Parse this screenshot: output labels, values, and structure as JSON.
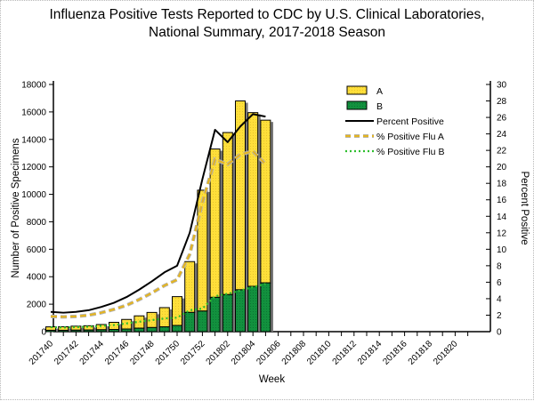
{
  "title": {
    "line1": "Influenza Positive Tests Reported to CDC by U.S. Clinical Laboratories,",
    "line2": "National Summary, 2017-2018 Season"
  },
  "chart_data": {
    "type": "bar",
    "subtype": "stacked-bars-with-percent-lines",
    "categories": [
      "201740",
      "201741",
      "201742",
      "201743",
      "201744",
      "201745",
      "201746",
      "201747",
      "201748",
      "201749",
      "201750",
      "201751",
      "201752",
      "201801",
      "201802",
      "201803",
      "201804",
      "201805"
    ],
    "series": [
      {
        "name": "A",
        "type": "bar",
        "axis": "left",
        "color": "#ffdf3a",
        "values": [
          250,
          260,
          290,
          310,
          380,
          520,
          700,
          900,
          1100,
          1400,
          2100,
          3700,
          8800,
          10800,
          11800,
          13750,
          12650,
          11850
        ]
      },
      {
        "name": "B",
        "type": "bar",
        "axis": "left",
        "color": "#12913e",
        "values": [
          100,
          100,
          110,
          120,
          140,
          160,
          190,
          250,
          300,
          350,
          450,
          1400,
          1500,
          2500,
          2700,
          3050,
          3300,
          3550
        ]
      },
      {
        "name": "Percent Positive",
        "type": "line",
        "style": "solid",
        "axis": "right",
        "color": "#000000",
        "values": [
          2.4,
          2.3,
          2.4,
          2.6,
          3.0,
          3.5,
          4.2,
          5.1,
          6.1,
          7.2,
          8.0,
          12.0,
          18.5,
          24.5,
          23.0,
          24.9,
          26.4,
          26.1
        ]
      },
      {
        "name": "% Positive Flu A",
        "type": "line",
        "style": "dashed",
        "axis": "right",
        "color": "#e3b422",
        "halo_color": "#b5b5b5",
        "values": [
          1.85,
          1.8,
          1.85,
          2.0,
          2.3,
          2.7,
          3.2,
          3.9,
          4.7,
          5.6,
          6.3,
          9.4,
          15.7,
          20.9,
          20.3,
          21.5,
          21.9,
          20.3
        ]
      },
      {
        "name": "% Positive Flu B",
        "type": "line",
        "style": "dotted",
        "axis": "right",
        "color": "#2ebe2e",
        "values": [
          0.55,
          0.5,
          0.55,
          0.6,
          0.7,
          0.8,
          1.0,
          1.2,
          1.4,
          1.6,
          1.7,
          2.6,
          2.8,
          4.3,
          4.6,
          5.0,
          5.4,
          5.8
        ]
      }
    ],
    "x_axis": {
      "label": "Week",
      "tick_labels": [
        "201740",
        "201742",
        "201744",
        "201746",
        "201748",
        "201750",
        "201752",
        "201802",
        "201804",
        "201806",
        "201808",
        "201810",
        "201812",
        "201814",
        "201816",
        "201818",
        "201820"
      ]
    },
    "y_left": {
      "label": "Number of Positive Specimens",
      "min": 0,
      "max": 18000,
      "step": 2000
    },
    "y_right": {
      "label": "Percent Positive",
      "min": 0,
      "max": 30,
      "step": 2
    },
    "legend": {
      "position": "top-center-inside",
      "entries": [
        "A",
        "B",
        "Percent Positive",
        "% Positive Flu A",
        "% Positive Flu B"
      ]
    },
    "bar_shadow_color": "#787878",
    "grid": false
  }
}
